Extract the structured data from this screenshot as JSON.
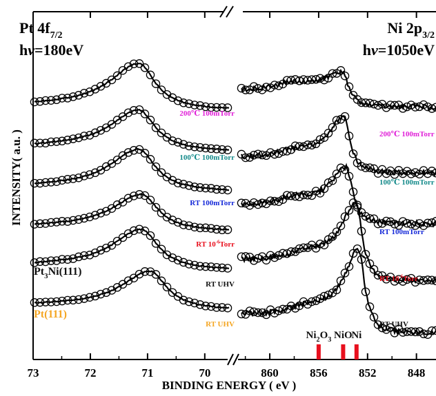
{
  "chart_data": [
    {
      "type": "line",
      "panel": "left",
      "title_main": "Pt 4f",
      "title_sub": "7/2",
      "excitation_prefix": "h",
      "excitation_nu": "ν",
      "excitation_value": "=180eV",
      "ylabel": "INTENSITY( a.u. )",
      "xlim": [
        73,
        69.6
      ],
      "x_ticks": [
        "73",
        "72",
        "71",
        "70"
      ],
      "x_tick_values": [
        73,
        72,
        71,
        70
      ],
      "sample_labels": [
        {
          "text": "Pt3Ni(111)",
          "parts": [
            {
              "t": "Pt"
            },
            {
              "t": "3",
              "sub": true
            },
            {
              "t": "Ni(111)"
            }
          ],
          "color": "#111111",
          "anchor_trace": 3
        },
        {
          "text": "Pt(111)",
          "parts": [
            {
              "t": "Pt(111)"
            }
          ],
          "color": "#f5a623",
          "anchor_trace": 4
        }
      ],
      "series": [
        {
          "name": "200℃ 100mTorr",
          "parts": [
            {
              "t": "200℃ 100mTorr"
            }
          ],
          "color": "#e020d8",
          "peak": 71.15,
          "height": 5.2
        },
        {
          "name": "100℃ 100mTorr",
          "parts": [
            {
              "t": "100℃ 100mTorr"
            }
          ],
          "color": "#138a8a",
          "peak": 71.15,
          "height": 4.6
        },
        {
          "name": "RT 100mTorr",
          "parts": [
            {
              "t": "RT 100mTorr"
            }
          ],
          "color": "#1428d8",
          "peak": 71.15,
          "height": 4.7
        },
        {
          "name": "RT 10-6Torr",
          "parts": [
            {
              "t": "RT 10"
            },
            {
              "t": "-6",
              "sup": true
            },
            {
              "t": "Torr"
            }
          ],
          "color": "#e8101e",
          "peak": 71.1,
          "height": 4.1
        },
        {
          "name": "RT UHV",
          "parts": [
            {
              "t": "RT UHV"
            }
          ],
          "color": "#111111",
          "peak": 71.1,
          "height": 4.5
        },
        {
          "name": "RT UHV",
          "parts": [
            {
              "t": "RT UHV"
            }
          ],
          "color": "#f5a623",
          "peak": 70.95,
          "height": 4.3
        }
      ]
    },
    {
      "type": "line",
      "panel": "right",
      "title_main": "Ni 2p",
      "title_sub": "3/2",
      "excitation_prefix": "h",
      "excitation_nu": "ν",
      "excitation_value": "=1050eV",
      "xlabel": "BINDING ENERGY ( eV )",
      "xlim": [
        862.6,
        846.4
      ],
      "x_ticks": [
        "860",
        "856",
        "852",
        "848"
      ],
      "x_tick_values": [
        860,
        856,
        852,
        848
      ],
      "reference_markers": [
        {
          "label": "Ni2O3",
          "parts": [
            {
              "t": "Ni"
            },
            {
              "t": "2",
              "sub": true
            },
            {
              "t": "O"
            },
            {
              "t": "3",
              "sub": true
            }
          ],
          "x": 856.0,
          "color": "#e8101e"
        },
        {
          "label": "NiO",
          "parts": [
            {
              "t": "NiO"
            }
          ],
          "x": 854.0,
          "color": "#e8101e"
        },
        {
          "label": "Ni",
          "parts": [
            {
              "t": "Ni"
            }
          ],
          "x": 852.9,
          "color": "#e8101e"
        }
      ],
      "series": [
        {
          "name": "200℃ 100mTorr",
          "parts": [
            {
              "t": "200℃ 100mTorr"
            }
          ],
          "color": "#e020d8",
          "peak": 854.0
        },
        {
          "name": "100℃ 100mTorr",
          "parts": [
            {
              "t": "100℃ 100mTorr"
            }
          ],
          "color": "#138a8a",
          "peak": 853.9
        },
        {
          "name": "RT 100mTorr",
          "parts": [
            {
              "t": "RT 100mTorr"
            }
          ],
          "color": "#1428d8",
          "peak": 853.7
        },
        {
          "name": "RT 10-6Torr",
          "parts": [
            {
              "t": "RT 10"
            },
            {
              "t": "-6",
              "sup": true
            },
            {
              "t": "Torr"
            }
          ],
          "color": "#e8101e",
          "peak": 852.9
        },
        {
          "name": "RT UHV",
          "parts": [
            {
              "t": "RT UHV"
            }
          ],
          "color": "#111111",
          "peak": 852.7
        }
      ]
    }
  ]
}
